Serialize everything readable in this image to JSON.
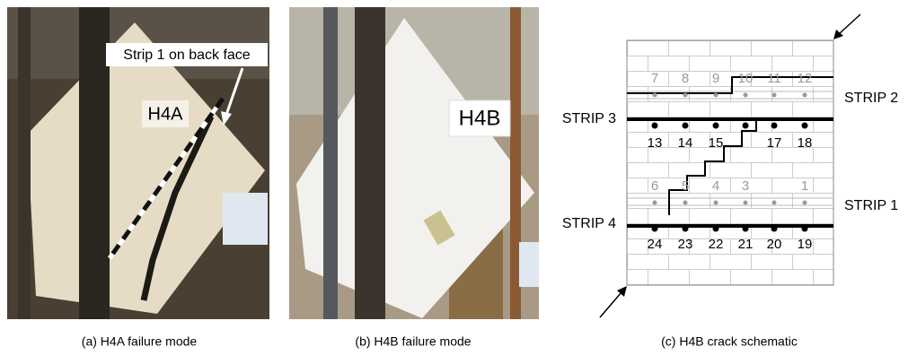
{
  "panels": [
    {
      "caption": "(a) H4A failure mode",
      "specimen": "H4A",
      "annotation": "Strip 1 on back face"
    },
    {
      "caption": "(b) H4B failure mode",
      "specimen": "H4B"
    },
    {
      "caption": "(c) H4B crack schematic",
      "strips": [
        "STRIP 1",
        "STRIP 2",
        "STRIP 3",
        "STRIP 4"
      ],
      "gauge_rows": [
        [
          7,
          8,
          9,
          10,
          11,
          12
        ],
        [
          13,
          14,
          15,
          null,
          17,
          18
        ],
        [
          6,
          5,
          4,
          3,
          null,
          1
        ],
        [
          24,
          23,
          22,
          21,
          20,
          19
        ]
      ]
    }
  ]
}
